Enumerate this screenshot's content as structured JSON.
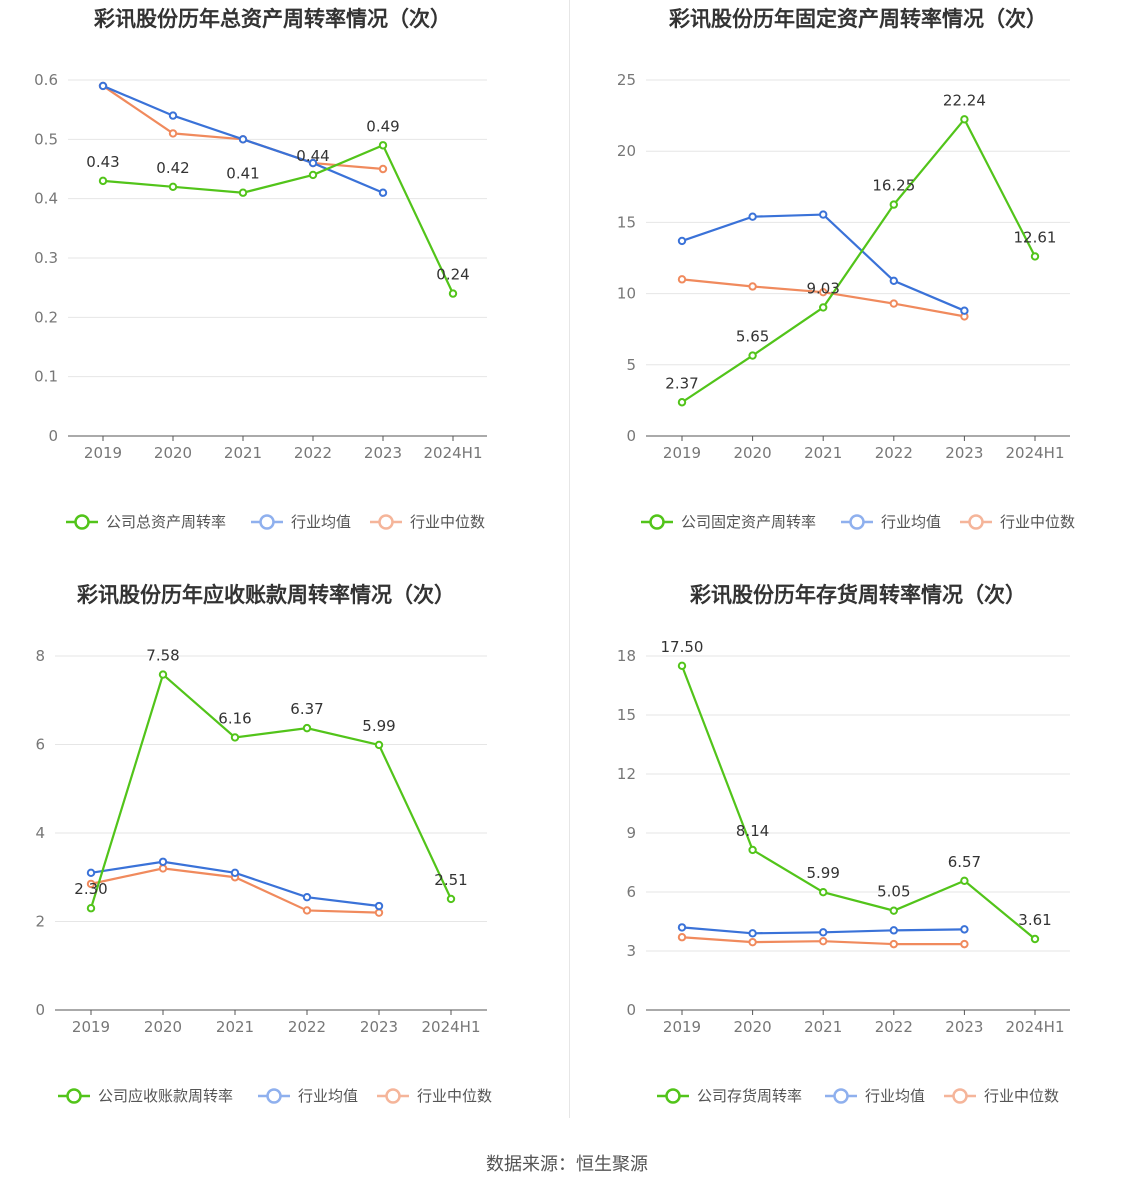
{
  "source": "数据来源：恒生聚源",
  "colors": {
    "company": "#52c41a",
    "avg": "#3a72d8",
    "median": "#f08a5d",
    "grid": "#e6e6e6",
    "axis": "#555555"
  },
  "chart_data": [
    {
      "type": "line",
      "title": "彩讯股份历年总资产周转率情况（次）",
      "categories": [
        "2019",
        "2020",
        "2021",
        "2022",
        "2023",
        "2024H1"
      ],
      "ylim": [
        0,
        0.6
      ],
      "yticks": [
        0,
        0.1,
        0.2,
        0.3,
        0.4,
        0.5,
        0.6
      ],
      "ytick_labels": [
        "0",
        "0.1",
        "0.2",
        "0.3",
        "0.4",
        "0.5",
        "0.6"
      ],
      "grid": true,
      "legend_position": "bottom",
      "series": [
        {
          "name": "公司总资产周转率",
          "values": [
            0.43,
            0.42,
            0.41,
            0.44,
            0.49,
            0.24
          ],
          "labels": [
            "0.43",
            "0.42",
            "0.41",
            "0.44",
            "0.49",
            "0.24"
          ]
        },
        {
          "name": "行业均值",
          "values": [
            0.59,
            0.54,
            0.5,
            0.46,
            0.41,
            null
          ]
        },
        {
          "name": "行业中位数",
          "values": [
            0.59,
            0.51,
            0.5,
            0.46,
            0.45,
            null
          ]
        }
      ]
    },
    {
      "type": "line",
      "title": "彩讯股份历年固定资产周转率情况（次）",
      "categories": [
        "2019",
        "2020",
        "2021",
        "2022",
        "2023",
        "2024H1"
      ],
      "ylim": [
        0,
        25
      ],
      "yticks": [
        0,
        5,
        10,
        15,
        20,
        25
      ],
      "ytick_labels": [
        "0",
        "5",
        "10",
        "15",
        "20",
        "25"
      ],
      "grid": true,
      "legend_position": "bottom",
      "series": [
        {
          "name": "公司固定资产周转率",
          "values": [
            2.37,
            5.65,
            9.03,
            16.25,
            22.24,
            12.61
          ],
          "labels": [
            "2.37",
            "5.65",
            "9.03",
            "16.25",
            "22.24",
            "12.61"
          ]
        },
        {
          "name": "行业均值",
          "values": [
            13.7,
            15.4,
            15.55,
            10.9,
            8.8,
            null
          ]
        },
        {
          "name": "行业中位数",
          "values": [
            11.0,
            10.5,
            10.1,
            9.3,
            8.4,
            null
          ]
        }
      ]
    },
    {
      "type": "line",
      "title": "彩讯股份历年应收账款周转率情况（次）",
      "categories": [
        "2019",
        "2020",
        "2021",
        "2022",
        "2023",
        "2024H1"
      ],
      "ylim": [
        0,
        8
      ],
      "yticks": [
        0,
        2,
        4,
        6,
        8
      ],
      "ytick_labels": [
        "0",
        "2",
        "4",
        "6",
        "8"
      ],
      "grid": true,
      "legend_position": "bottom",
      "series": [
        {
          "name": "公司应收账款周转率",
          "values": [
            2.3,
            7.58,
            6.16,
            6.37,
            5.99,
            2.51
          ],
          "labels": [
            "2.30",
            "7.58",
            "6.16",
            "6.37",
            "5.99",
            "2.51"
          ]
        },
        {
          "name": "行业均值",
          "values": [
            3.1,
            3.35,
            3.1,
            2.55,
            2.35,
            null
          ]
        },
        {
          "name": "行业中位数",
          "values": [
            2.85,
            3.2,
            3.0,
            2.25,
            2.2,
            null
          ]
        }
      ]
    },
    {
      "type": "line",
      "title": "彩讯股份历年存货周转率情况（次）",
      "categories": [
        "2019",
        "2020",
        "2021",
        "2022",
        "2023",
        "2024H1"
      ],
      "ylim": [
        0,
        18
      ],
      "yticks": [
        0,
        3,
        6,
        9,
        12,
        15,
        18
      ],
      "ytick_labels": [
        "0",
        "3",
        "6",
        "9",
        "12",
        "15",
        "18"
      ],
      "grid": true,
      "legend_position": "bottom",
      "series": [
        {
          "name": "公司存货周转率",
          "values": [
            17.5,
            8.14,
            5.99,
            5.05,
            6.57,
            3.61
          ],
          "labels": [
            "17.50",
            "8.14",
            "5.99",
            "5.05",
            "6.57",
            "3.61"
          ]
        },
        {
          "name": "行业均值",
          "values": [
            4.2,
            3.9,
            3.95,
            4.05,
            4.1,
            null
          ]
        },
        {
          "name": "行业中位数",
          "values": [
            3.7,
            3.45,
            3.5,
            3.35,
            3.35,
            null
          ]
        }
      ]
    }
  ]
}
